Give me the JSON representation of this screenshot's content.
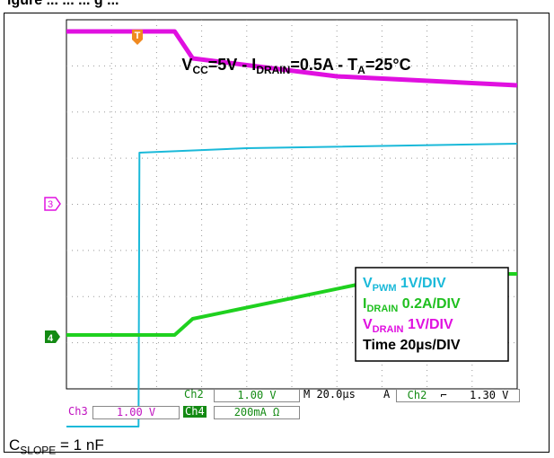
{
  "header": {
    "fragment": "igure ... ... ... g ..."
  },
  "chart_data": {
    "type": "line",
    "title": "VCC=5V - IDRAIN=0.5A - TA=25°C",
    "title_parts": {
      "vcc": "V",
      "vcc_sub": "CC",
      "vcc_rest": "=5V - I",
      "idrain_sub": "DRAIN",
      "idrain_rest": "=0.5A - T",
      "ta_sub": "A",
      "ta_rest": "=25°C"
    },
    "time_div_us": 20,
    "grid": true,
    "divisions": {
      "x": 10,
      "y": 8
    },
    "series": [
      {
        "name": "VPWM",
        "color": "#1ab9d9",
        "points": [
          [
            0,
            -1
          ],
          [
            16,
            -1
          ],
          [
            16.2,
            2.05
          ],
          [
            40,
            2.1
          ],
          [
            100,
            2.15
          ]
        ]
      },
      {
        "name": "IDRAIN",
        "color": "#1fd11f",
        "points": [
          [
            0,
            0.02
          ],
          [
            24,
            0.02
          ],
          [
            28,
            0.2
          ],
          [
            76,
            0.7
          ],
          [
            100,
            0.7
          ]
        ]
      },
      {
        "name": "VDRAIN",
        "color": "#e010e0",
        "points": [
          [
            0,
            3.4
          ],
          [
            24,
            3.4
          ],
          [
            28,
            3.1
          ],
          [
            60,
            2.9
          ],
          [
            100,
            2.8
          ]
        ]
      }
    ],
    "markers": {
      "trigger": "T",
      "ch3": "3",
      "ch4": "4"
    },
    "legend": {
      "position": "bottom-right",
      "items": [
        {
          "label": "V",
          "sub": "PWM",
          "value": " 1V/DIV",
          "color": "#1ab9d9"
        },
        {
          "label": "I",
          "sub": "DRAIN",
          "value": " 0.2A/DIV",
          "color": "#1fbf1f"
        },
        {
          "label": "V",
          "sub": "DRAIN",
          "value": " 1V/DIV",
          "color": "#e010e0"
        },
        {
          "label": "Time 20µs/DIV",
          "sub": "",
          "value": "",
          "color": "#000000"
        }
      ]
    }
  },
  "status": {
    "ch2_label": "Ch2",
    "ch2_value": "1.00 V",
    "timebase": "M 20.0µs",
    "trigger_mode": "A",
    "trigger_source": "Ch2",
    "trigger_slope": "⌐",
    "trigger_level": "1.30 V",
    "ch3_label": "Ch3",
    "ch3_value": "1.00 V",
    "ch4_label": "Ch4",
    "ch4_value": "200mA Ω"
  },
  "caption": {
    "main": "C",
    "sub": "SLOPE",
    "rest": " = 1 nF"
  }
}
